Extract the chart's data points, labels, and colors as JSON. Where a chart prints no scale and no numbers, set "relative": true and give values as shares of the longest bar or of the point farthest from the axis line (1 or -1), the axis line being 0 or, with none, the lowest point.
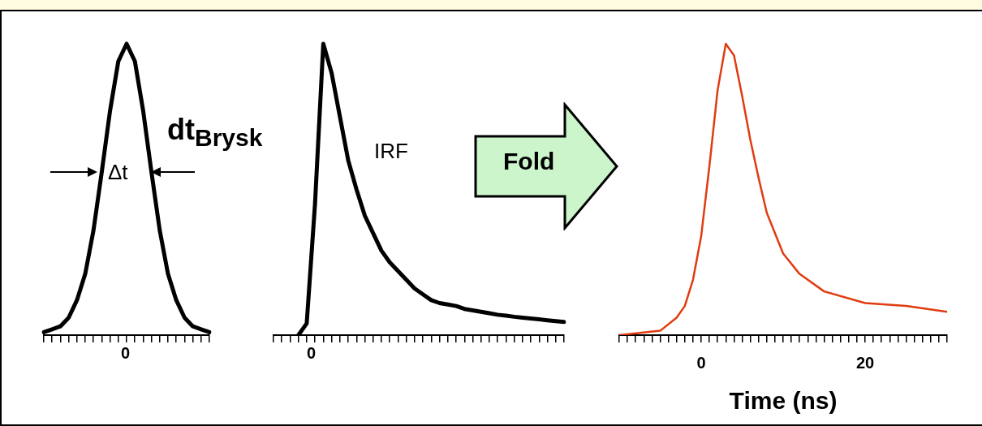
{
  "chart_data": [
    {
      "type": "line",
      "relative": true,
      "grid": false,
      "legend": false,
      "marker": "none",
      "line_style": "solid",
      "annotations": [
        "Δt",
        "dt$_{Brysk}$",
        "0"
      ],
      "categories": [
        null,
        null,
        null,
        null,
        null,
        null,
        null,
        null,
        null,
        null,
        null,
        null,
        null,
        null,
        null,
        null,
        null,
        null,
        null,
        null,
        null
      ],
      "series": [
        {
          "color": "#000000",
          "values": [
            0.01,
            0.02,
            0.03,
            0.06,
            0.12,
            0.21,
            0.36,
            0.56,
            0.77,
            0.94,
            1,
            0.94,
            0.77,
            0.56,
            0.36,
            0.21,
            0.12,
            0.06,
            0.03,
            0.02,
            0.01
          ]
        }
      ]
    },
    {
      "type": "line",
      "relative": true,
      "grid": false,
      "legend": false,
      "marker": "none",
      "line_style": "solid",
      "annotations": [
        "IRF",
        "0"
      ],
      "categories": [
        null,
        null,
        null,
        null,
        null,
        null,
        null,
        null,
        null,
        null,
        null,
        null,
        null,
        null,
        null,
        null,
        null,
        null,
        null,
        null,
        null,
        null,
        null,
        null,
        null,
        null,
        null,
        null,
        null,
        null,
        null,
        null,
        null,
        null,
        null,
        null
      ],
      "series": [
        {
          "color": "#000000",
          "values": [
            null,
            null,
            null,
            0,
            0.04,
            0.45,
            1,
            0.9,
            0.75,
            0.6,
            0.5,
            0.41,
            0.35,
            0.29,
            0.25,
            0.22,
            0.19,
            0.16,
            0.14,
            0.12,
            0.11,
            0.105,
            0.1,
            0.09,
            0.085,
            0.08,
            0.075,
            0.07,
            0.067,
            0.063,
            0.06,
            0.057,
            0.054,
            0.051,
            0.048,
            0.045
          ]
        }
      ]
    },
    {
      "type": "line",
      "relative": true,
      "xlim": [
        -10,
        30
      ],
      "tick_labels": "x",
      "grid": false,
      "legend": false,
      "marker": "none",
      "line_style": "solid",
      "xlabel": "Time (ns)",
      "xticks": [
        {
          "value": -10,
          "label": null
        },
        {
          "value": -9,
          "label": null
        },
        {
          "value": -8,
          "label": null
        },
        {
          "value": -7,
          "label": null
        },
        {
          "value": -6,
          "label": null
        },
        {
          "value": -5,
          "label": null
        },
        {
          "value": -4,
          "label": null
        },
        {
          "value": -3,
          "label": null
        },
        {
          "value": -2,
          "label": null
        },
        {
          "value": -1,
          "label": null
        },
        0,
        {
          "value": 1,
          "label": null
        },
        {
          "value": 2,
          "label": null
        },
        {
          "value": 3,
          "label": null
        },
        {
          "value": 4,
          "label": null
        },
        {
          "value": 5,
          "label": null
        },
        {
          "value": 6,
          "label": null
        },
        {
          "value": 7,
          "label": null
        },
        {
          "value": 8,
          "label": null
        },
        {
          "value": 9,
          "label": null
        },
        {
          "value": 10,
          "label": null
        },
        {
          "value": 11,
          "label": null
        },
        {
          "value": 12,
          "label": null
        },
        {
          "value": 13,
          "label": null
        },
        {
          "value": 14,
          "label": null
        },
        {
          "value": 15,
          "label": null
        },
        {
          "value": 16,
          "label": null
        },
        {
          "value": 17,
          "label": null
        },
        {
          "value": 18,
          "label": null
        },
        {
          "value": 19,
          "label": null
        },
        20,
        {
          "value": 21,
          "label": null
        },
        {
          "value": 22,
          "label": null
        },
        {
          "value": 23,
          "label": null
        },
        {
          "value": 24,
          "label": null
        },
        {
          "value": 25,
          "label": null
        },
        {
          "value": 26,
          "label": null
        },
        {
          "value": 27,
          "label": null
        },
        {
          "value": 28,
          "label": null
        },
        {
          "value": 29,
          "label": null
        },
        {
          "value": 30,
          "label": null
        }
      ],
      "annotations": [
        "Fold"
      ],
      "series": [
        {
          "color": "#e03c10",
          "x": [
            -10,
            -5,
            -3,
            -2,
            -1,
            0,
            1,
            2,
            3,
            4,
            5,
            6,
            7,
            8,
            10,
            12,
            15,
            20,
            25,
            30
          ],
          "values": [
            0,
            0.015,
            0.06,
            0.1,
            0.19,
            0.34,
            0.58,
            0.84,
            1,
            0.96,
            0.82,
            0.67,
            0.54,
            0.42,
            0.28,
            0.21,
            0.15,
            0.11,
            0.1,
            0.08
          ]
        }
      ]
    }
  ]
}
